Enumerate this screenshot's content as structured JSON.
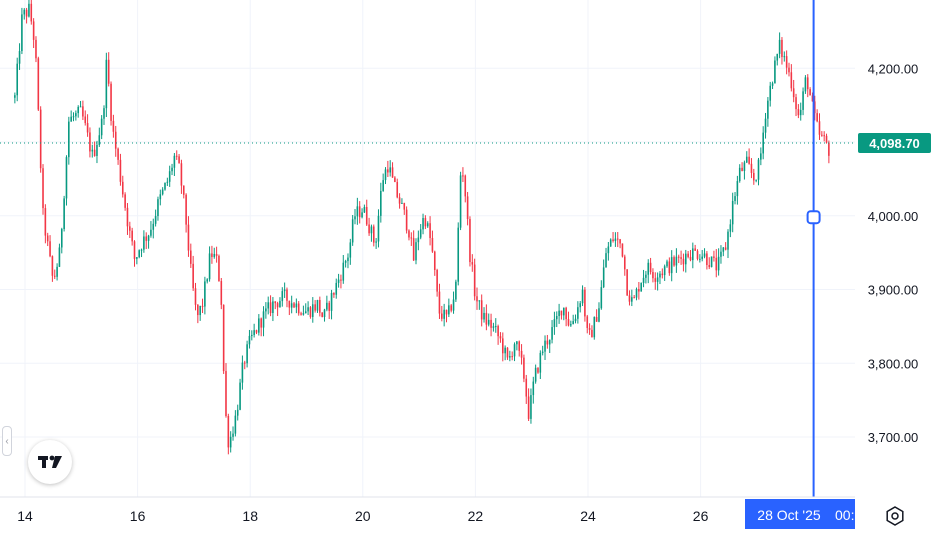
{
  "chart_data": {
    "type": "candlestick",
    "title": "",
    "xlabel": "",
    "ylabel": "",
    "ylim": [
      3620,
      4310
    ],
    "yticks": [
      3700,
      3800,
      3900,
      4000,
      4100,
      4200
    ],
    "ytick_labels": [
      "3,700.00",
      "3,800.00",
      "3,900.00",
      "4,000.00",
      "4,100.00",
      "4,200.00"
    ],
    "xtick_labels": [
      "14",
      "16",
      "18",
      "20",
      "22",
      "24",
      "26"
    ],
    "last_price": 4098.7,
    "last_price_label": "4,098.70",
    "crosshair_price": 3998,
    "crosshair_date_label": "28 Oct '25",
    "crosshair_time_fragment": "00:",
    "grid": true,
    "colors": {
      "up": "#089981",
      "down": "#f23645",
      "last_price": "#089981",
      "crosshair": "#2962ff"
    },
    "anchors": [
      [
        13.82,
        4160
      ],
      [
        13.95,
        4270
      ],
      [
        14.08,
        4280
      ],
      [
        14.18,
        4230
      ],
      [
        14.32,
        4000
      ],
      [
        14.5,
        3910
      ],
      [
        14.62,
        3950
      ],
      [
        14.78,
        4130
      ],
      [
        15.0,
        4140
      ],
      [
        15.2,
        4080
      ],
      [
        15.38,
        4130
      ],
      [
        15.45,
        4210
      ],
      [
        15.55,
        4120
      ],
      [
        15.7,
        4050
      ],
      [
        15.85,
        3980
      ],
      [
        15.95,
        3940
      ],
      [
        16.05,
        3960
      ],
      [
        16.22,
        3980
      ],
      [
        16.38,
        4020
      ],
      [
        16.55,
        4050
      ],
      [
        16.65,
        4080
      ],
      [
        16.75,
        4060
      ],
      [
        16.85,
        4000
      ],
      [
        16.95,
        3920
      ],
      [
        17.05,
        3860
      ],
      [
        17.15,
        3880
      ],
      [
        17.3,
        3950
      ],
      [
        17.4,
        3940
      ],
      [
        17.48,
        3900
      ],
      [
        17.55,
        3740
      ],
      [
        17.62,
        3690
      ],
      [
        17.75,
        3730
      ],
      [
        17.88,
        3800
      ],
      [
        18.0,
        3830
      ],
      [
        18.2,
        3860
      ],
      [
        18.4,
        3880
      ],
      [
        18.6,
        3890
      ],
      [
        18.8,
        3880
      ],
      [
        19.0,
        3870
      ],
      [
        19.2,
        3880
      ],
      [
        19.3,
        3860
      ],
      [
        19.45,
        3890
      ],
      [
        19.6,
        3920
      ],
      [
        19.75,
        3950
      ],
      [
        19.85,
        4000
      ],
      [
        20.0,
        4010
      ],
      [
        20.1,
        3990
      ],
      [
        20.22,
        3960
      ],
      [
        20.35,
        4050
      ],
      [
        20.45,
        4070
      ],
      [
        20.55,
        4040
      ],
      [
        20.7,
        4010
      ],
      [
        20.82,
        3980
      ],
      [
        20.9,
        3940
      ],
      [
        21.0,
        3980
      ],
      [
        21.1,
        4000
      ],
      [
        21.22,
        3960
      ],
      [
        21.35,
        3870
      ],
      [
        21.5,
        3860
      ],
      [
        21.65,
        3900
      ],
      [
        21.75,
        4080
      ],
      [
        21.82,
        4030
      ],
      [
        21.9,
        3950
      ],
      [
        22.0,
        3890
      ],
      [
        22.15,
        3860
      ],
      [
        22.3,
        3850
      ],
      [
        22.45,
        3830
      ],
      [
        22.58,
        3800
      ],
      [
        22.7,
        3830
      ],
      [
        22.85,
        3790
      ],
      [
        22.95,
        3730
      ],
      [
        23.05,
        3780
      ],
      [
        23.2,
        3820
      ],
      [
        23.4,
        3850
      ],
      [
        23.55,
        3880
      ],
      [
        23.68,
        3850
      ],
      [
        23.8,
        3870
      ],
      [
        23.9,
        3900
      ],
      [
        24.0,
        3830
      ],
      [
        24.1,
        3850
      ],
      [
        24.2,
        3880
      ],
      [
        24.32,
        3950
      ],
      [
        24.45,
        3970
      ],
      [
        24.6,
        3960
      ],
      [
        24.7,
        3900
      ],
      [
        24.8,
        3880
      ],
      [
        24.92,
        3910
      ],
      [
        25.05,
        3930
      ],
      [
        25.2,
        3920
      ],
      [
        25.4,
        3930
      ],
      [
        25.6,
        3940
      ],
      [
        25.8,
        3950
      ],
      [
        26.0,
        3950
      ],
      [
        26.15,
        3940
      ],
      [
        26.3,
        3930
      ],
      [
        26.45,
        3960
      ],
      [
        26.58,
        4020
      ],
      [
        26.7,
        4060
      ],
      [
        26.82,
        4070
      ],
      [
        26.95,
        4050
      ],
      [
        27.05,
        4070
      ],
      [
        27.15,
        4140
      ],
      [
        27.28,
        4190
      ],
      [
        27.4,
        4230
      ],
      [
        27.5,
        4210
      ],
      [
        27.62,
        4180
      ],
      [
        27.75,
        4130
      ],
      [
        27.88,
        4190
      ],
      [
        28.0,
        4140
      ],
      [
        28.1,
        4110
      ],
      [
        28.2,
        4100
      ],
      [
        28.28,
        4090
      ]
    ]
  }
}
